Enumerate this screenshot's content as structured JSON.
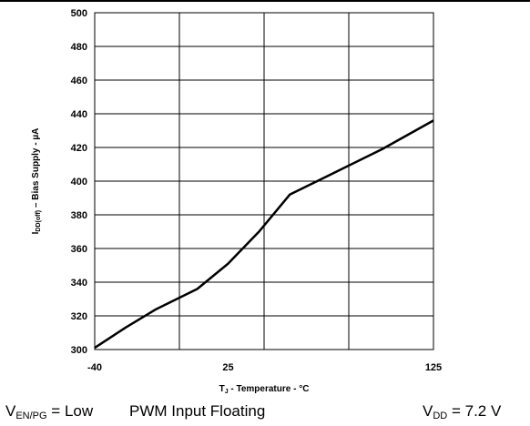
{
  "chart_data": {
    "type": "line",
    "xlabel": {
      "main": "T",
      "sub": "J",
      "rest": " - Temperature - °C"
    },
    "ylabel": {
      "main": "I",
      "sub": "DD(off)",
      "rest": " – Bias Supply - µA"
    },
    "xlim": [
      -40,
      125
    ],
    "ylim": [
      300,
      500
    ],
    "x_ticks": [
      -40,
      25,
      125
    ],
    "y_ticks": [
      300,
      320,
      340,
      360,
      380,
      400,
      420,
      440,
      460,
      480,
      500
    ],
    "grid": true,
    "series": [
      {
        "color": "#000000",
        "x": [
          -40,
          -25,
          -10,
          10,
          25,
          40,
          55,
          75,
          100,
          125
        ],
        "y": [
          301,
          313,
          324,
          336,
          351,
          370,
          392,
          404,
          419,
          436
        ]
      }
    ]
  },
  "caption": {
    "ven_main": "V",
    "ven_sub": "EN/PG",
    "ven_rest": " = Low",
    "pwm": "PWM Input Floating",
    "vdd_main": "V",
    "vdd_sub": "DD",
    "vdd_rest": " = 7.2 V"
  }
}
